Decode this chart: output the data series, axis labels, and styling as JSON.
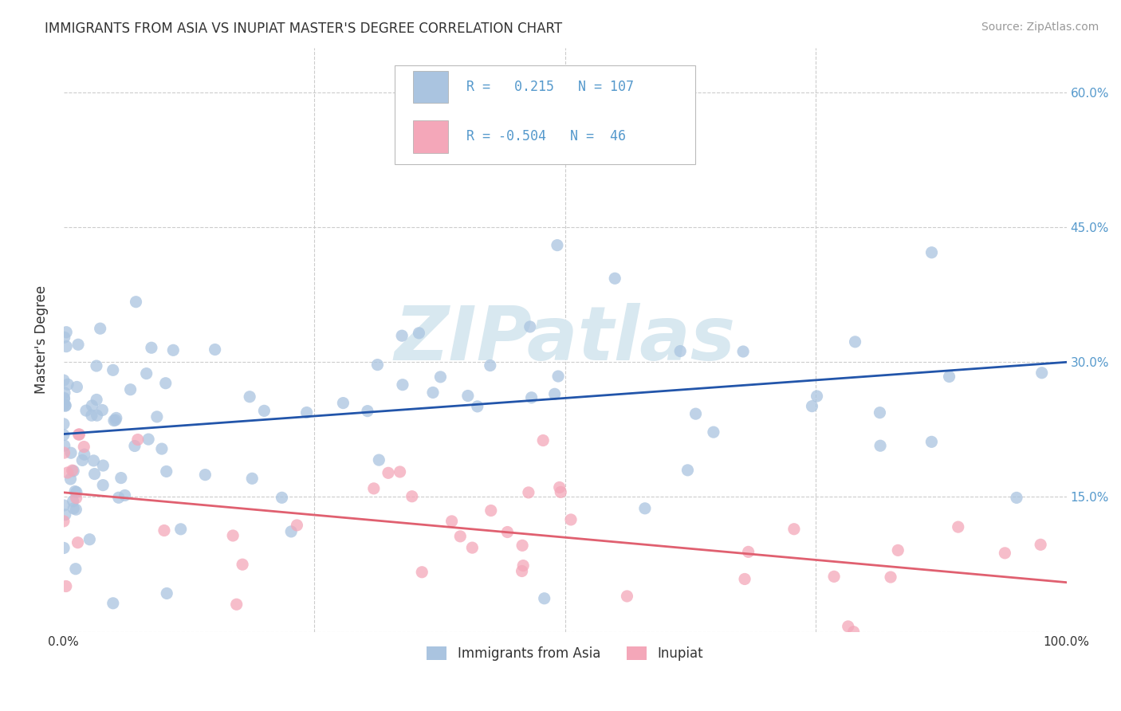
{
  "title": "IMMIGRANTS FROM ASIA VS INUPIAT MASTER'S DEGREE CORRELATION CHART",
  "source": "Source: ZipAtlas.com",
  "ylabel": "Master's Degree",
  "xlim": [
    0.0,
    1.0
  ],
  "ylim": [
    0.0,
    0.65
  ],
  "x_ticks": [
    0.0,
    0.25,
    0.5,
    0.75,
    1.0
  ],
  "x_tick_labels": [
    "0.0%",
    "",
    "",
    "",
    "100.0%"
  ],
  "y_ticks": [
    0.0,
    0.15,
    0.3,
    0.45,
    0.6
  ],
  "y_tick_labels_right": [
    "",
    "15.0%",
    "30.0%",
    "45.0%",
    "60.0%"
  ],
  "blue_R": 0.215,
  "blue_N": 107,
  "pink_R": -0.504,
  "pink_N": 46,
  "blue_color": "#aac4e0",
  "pink_color": "#f4a7b9",
  "blue_line_color": "#2255aa",
  "pink_line_color": "#e06070",
  "tick_color": "#5599cc",
  "watermark_text": "ZIPatlas",
  "watermark_color": "#d8e8f0",
  "grid_color": "#cccccc",
  "background_color": "#ffffff",
  "blue_line_start_y": 0.22,
  "blue_line_end_y": 0.3,
  "pink_line_start_y": 0.155,
  "pink_line_end_y": 0.055
}
